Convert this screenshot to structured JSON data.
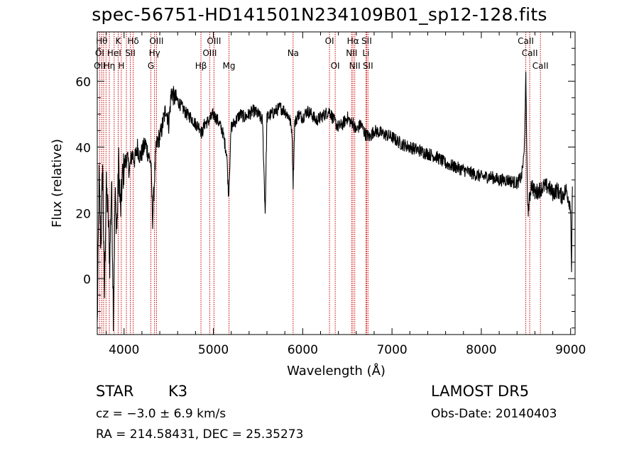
{
  "title": "spec-56751-HD141501N234109B01_sp12-128.fits",
  "info": {
    "class": "STAR",
    "subclass": "K3",
    "survey": "LAMOST DR5",
    "cz": "cz = −3.0 ± 6.9 km/s",
    "obs_date": "Obs-Date: 20140403",
    "radec": "RA = 214.58431, DEC =  25.35273"
  },
  "colors": {
    "spectrum": "#000000",
    "line_markers": "#cc0000",
    "axes": "#000000"
  },
  "chart_data": {
    "type": "line",
    "title": "spec-56751-HD141501N234109B01_sp12-128.fits",
    "xlabel": "Wavelength (Å)",
    "ylabel": "Flux (relative)",
    "xlim": [
      3700,
      9050
    ],
    "ylim": [
      -17,
      75
    ],
    "x_ticks": [
      4000,
      5000,
      6000,
      7000,
      8000,
      9000
    ],
    "y_ticks": [
      0,
      20,
      40,
      60
    ],
    "grid": false,
    "spectrum": {
      "x": [
        3700,
        3720,
        3740,
        3760,
        3780,
        3800,
        3820,
        3840,
        3860,
        3880,
        3900,
        3920,
        3940,
        3960,
        3980,
        4000,
        4030,
        4060,
        4090,
        4120,
        4150,
        4180,
        4210,
        4240,
        4270,
        4300,
        4320,
        4340,
        4360,
        4380,
        4410,
        4440,
        4470,
        4500,
        4530,
        4560,
        4600,
        4650,
        4700,
        4750,
        4800,
        4850,
        4870,
        4900,
        4950,
        5000,
        5050,
        5100,
        5150,
        5170,
        5180,
        5190,
        5200,
        5250,
        5300,
        5350,
        5400,
        5450,
        5500,
        5550,
        5580,
        5600,
        5650,
        5700,
        5750,
        5800,
        5850,
        5880,
        5893,
        5910,
        5950,
        6000,
        6050,
        6100,
        6150,
        6200,
        6250,
        6300,
        6350,
        6400,
        6450,
        6500,
        6550,
        6563,
        6580,
        6600,
        6650,
        6700,
        6750,
        6800,
        6900,
        7000,
        7100,
        7200,
        7300,
        7400,
        7500,
        7600,
        7700,
        7800,
        7900,
        8000,
        8100,
        8200,
        8300,
        8400,
        8450,
        8480,
        8498,
        8510,
        8520,
        8540,
        8560,
        8600,
        8650,
        8700,
        8750,
        8800,
        8850,
        8900,
        8950,
        8980,
        9000,
        9010,
        9020
      ],
      "y": [
        -15,
        30,
        10,
        35,
        -5,
        28,
        20,
        5,
        30,
        -10,
        25,
        15,
        35,
        20,
        30,
        34,
        37,
        33,
        38,
        36,
        40,
        37,
        39,
        41,
        38,
        35,
        18,
        30,
        40,
        42,
        44,
        48,
        52,
        47,
        57,
        55,
        54,
        52,
        50,
        49,
        47,
        46,
        44,
        47,
        48,
        50,
        48,
        45,
        38,
        25,
        32,
        40,
        46,
        48,
        50,
        49,
        50,
        51,
        50,
        48,
        20,
        49,
        50,
        51,
        52,
        51,
        49,
        45,
        29,
        47,
        50,
        49,
        51,
        50,
        48,
        49,
        50,
        51,
        48,
        46,
        47,
        49,
        47,
        48,
        46,
        45,
        47,
        44,
        43,
        45,
        44,
        43,
        41,
        40,
        39,
        38,
        37,
        35,
        34,
        33,
        32,
        31,
        31,
        30,
        30,
        29,
        31,
        38,
        61,
        38,
        20,
        24,
        29,
        26,
        27,
        28,
        28,
        26,
        27,
        25,
        27,
        24,
        22,
        3,
        28
      ]
    },
    "line_marker_wavelengths": [
      3727,
      3750,
      3771,
      3798,
      3835,
      3889,
      3934,
      3969,
      4026,
      4070,
      4102,
      4300,
      4341,
      4363,
      4861,
      4959,
      5007,
      5175,
      5893,
      6300,
      6364,
      6548,
      6563,
      6583,
      6708,
      6716,
      6731,
      8498,
      8542,
      8662
    ],
    "annotations": [
      {
        "text": "Hθ",
        "x": 3750,
        "row": 1
      },
      {
        "text": "K",
        "x": 3934,
        "row": 1
      },
      {
        "text": "Hδ",
        "x": 4102,
        "row": 1
      },
      {
        "text": "OIII",
        "x": 4363,
        "row": 1
      },
      {
        "text": "OIII",
        "x": 5007,
        "row": 1
      },
      {
        "text": "OI",
        "x": 6300,
        "row": 1
      },
      {
        "text": "Hα",
        "x": 6563,
        "row": 1
      },
      {
        "text": "SII",
        "x": 6716,
        "row": 1
      },
      {
        "text": "CaII",
        "x": 8498,
        "row": 1
      },
      {
        "text": "OI",
        "x": 3727,
        "row": 2
      },
      {
        "text": "HeI",
        "x": 3889,
        "row": 2
      },
      {
        "text": "SII",
        "x": 4070,
        "row": 2
      },
      {
        "text": "Hγ",
        "x": 4341,
        "row": 2
      },
      {
        "text": "OIII",
        "x": 4959,
        "row": 2
      },
      {
        "text": "Na",
        "x": 5893,
        "row": 2
      },
      {
        "text": "NII",
        "x": 6548,
        "row": 2
      },
      {
        "text": "Li",
        "x": 6708,
        "row": 2
      },
      {
        "text": "CaII",
        "x": 8542,
        "row": 2
      },
      {
        "text": "OII",
        "x": 3727,
        "row": 3
      },
      {
        "text": "Hη",
        "x": 3835,
        "row": 3
      },
      {
        "text": "H",
        "x": 3969,
        "row": 3
      },
      {
        "text": "G",
        "x": 4300,
        "row": 3
      },
      {
        "text": "Hβ",
        "x": 4861,
        "row": 3
      },
      {
        "text": "Mg",
        "x": 5175,
        "row": 3
      },
      {
        "text": "OI",
        "x": 6364,
        "row": 3
      },
      {
        "text": "NII",
        "x": 6583,
        "row": 3
      },
      {
        "text": "SII",
        "x": 6731,
        "row": 3
      },
      {
        "text": "CaII",
        "x": 8662,
        "row": 3
      }
    ]
  }
}
